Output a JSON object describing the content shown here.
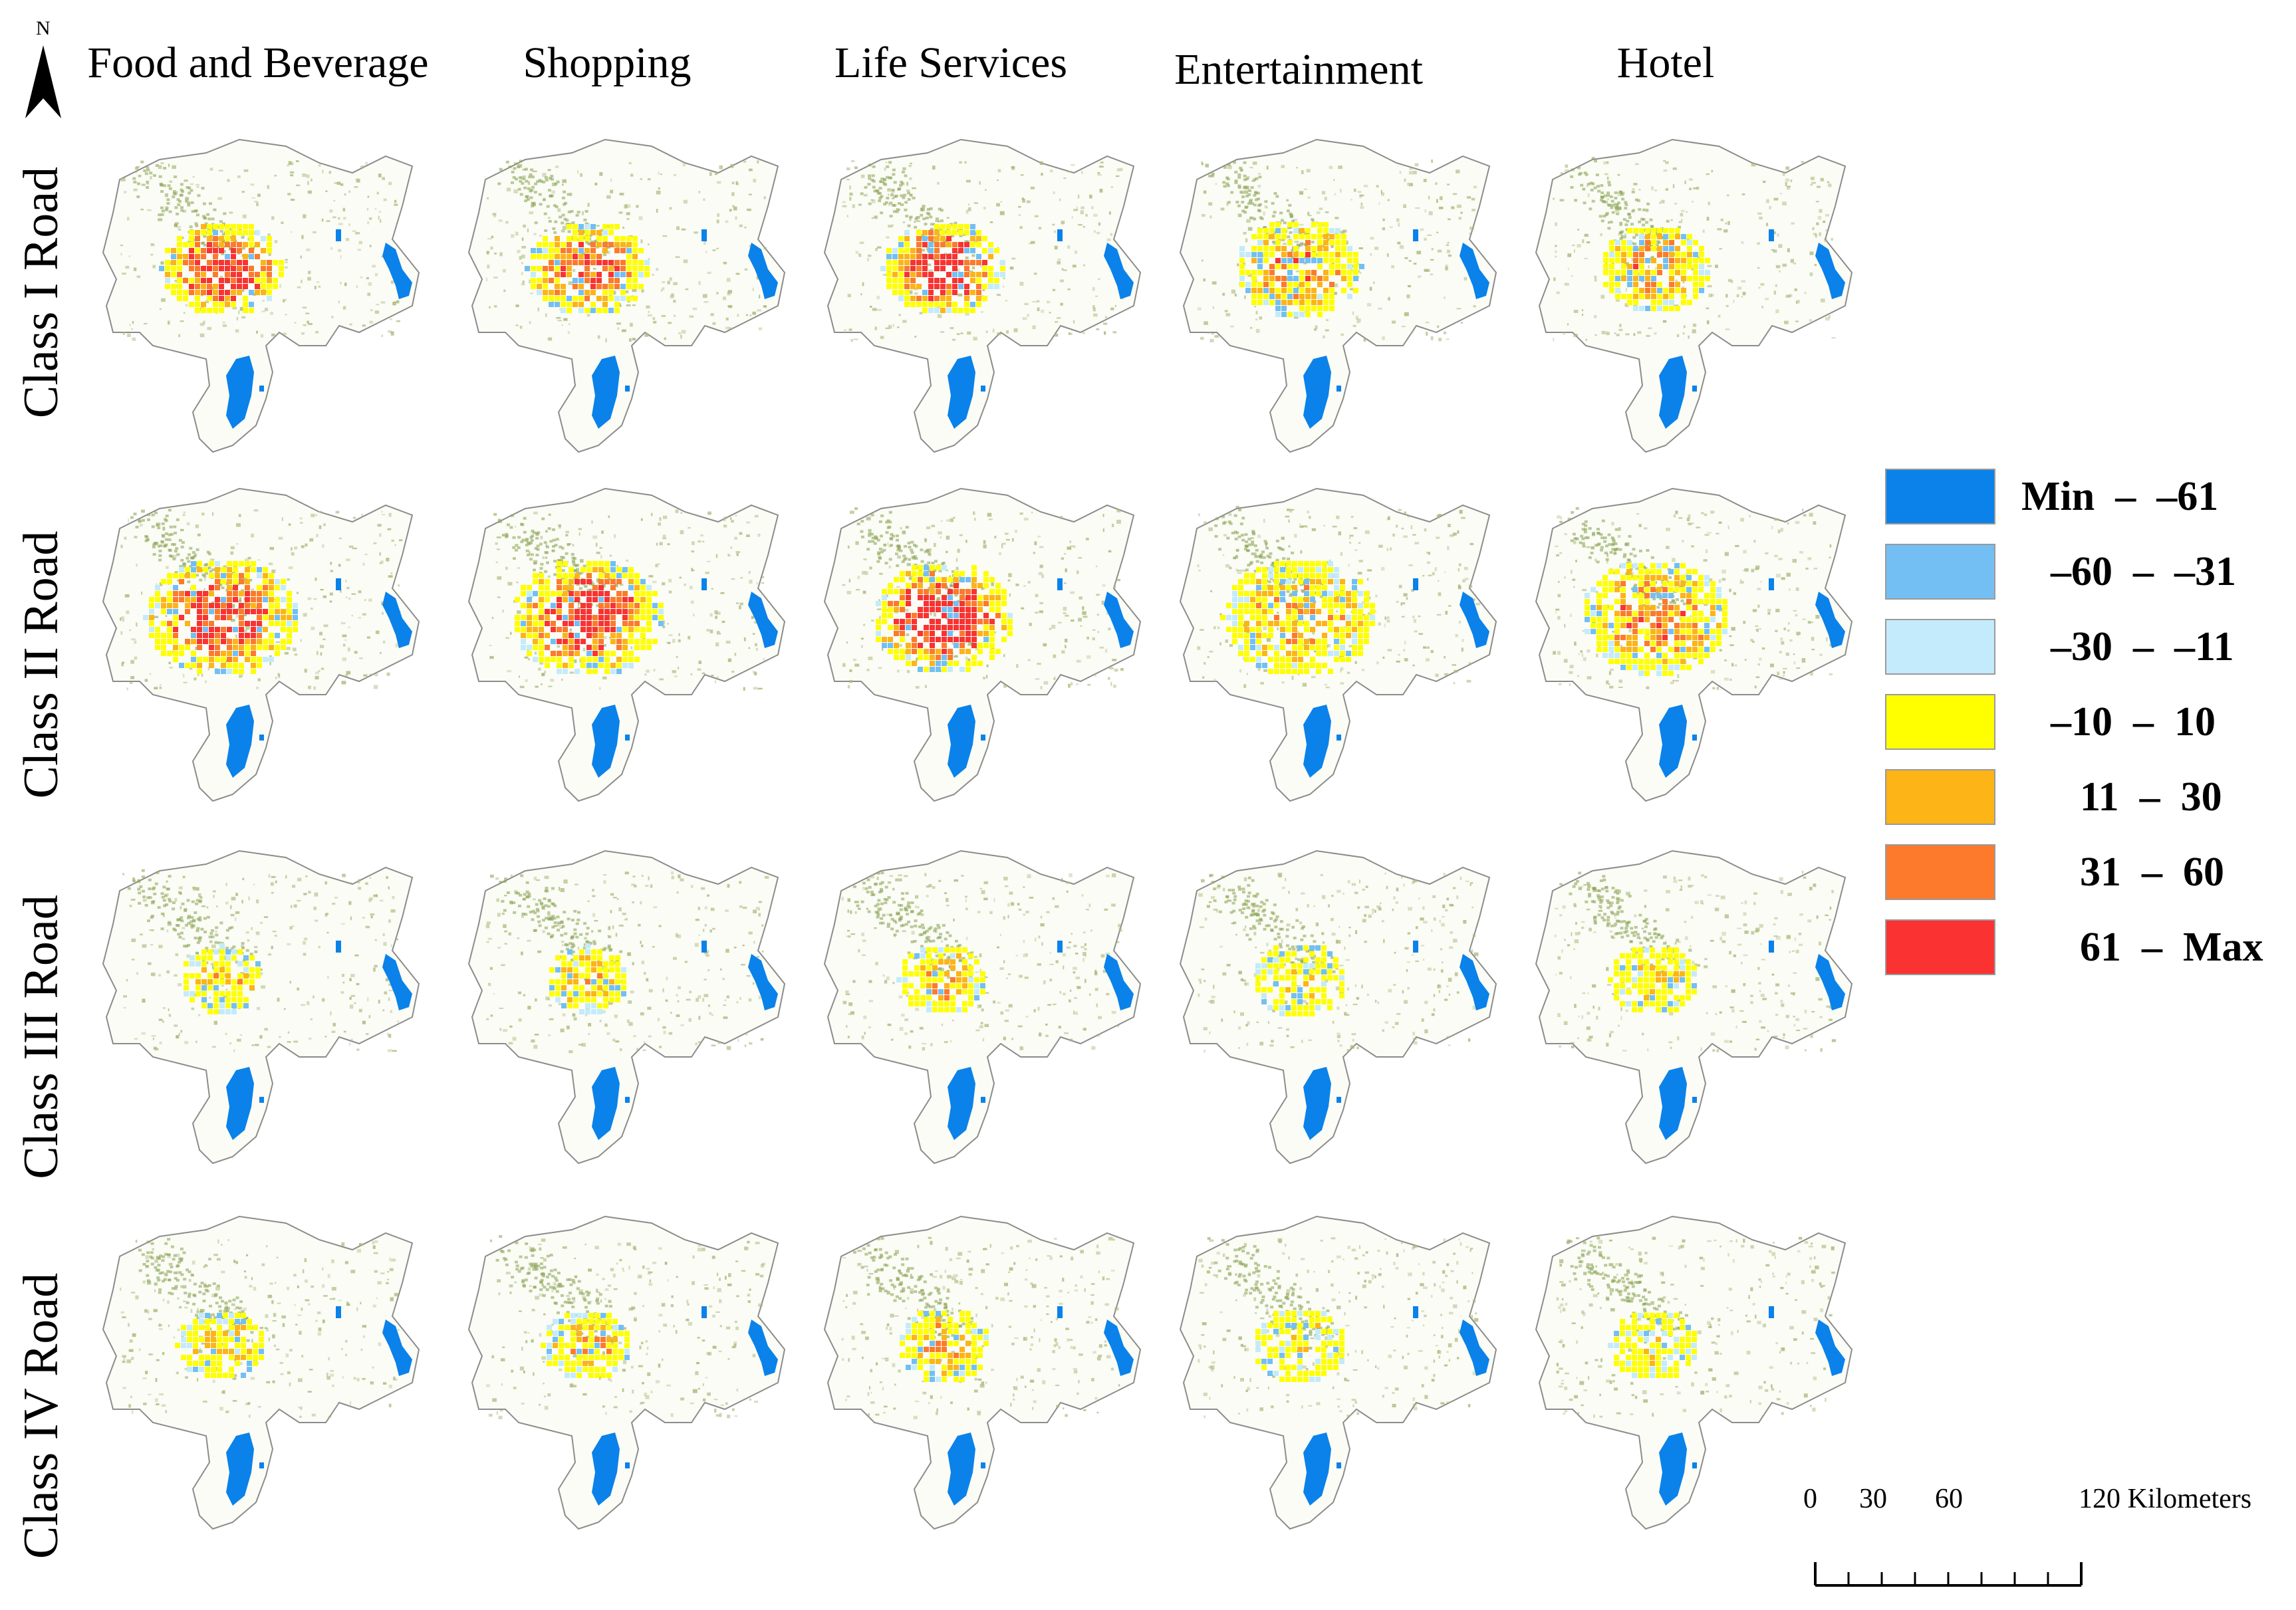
{
  "north_arrow": {
    "letter": "N"
  },
  "columns": [
    "Food and Beverage",
    "Shopping",
    "Life Services",
    "Entertainment",
    "Hotel"
  ],
  "rows": [
    "Class I Road",
    "Class II Road",
    "Class III Road",
    "Class IV Road"
  ],
  "legend": [
    {
      "label": "Min  –  –61",
      "color": "#0a82ea"
    },
    {
      "label": "–60  –  –31",
      "color": "#73bff4"
    },
    {
      "label": "–30  –  –11",
      "color": "#c4ebfb"
    },
    {
      "label": "–10  –  10",
      "color": "#ffff00"
    },
    {
      "label": "11  –  30",
      "color": "#fdb417"
    },
    {
      "label": "31  –  60",
      "color": "#fd7a2c"
    },
    {
      "label": "61  –  Max",
      "color": "#fa3232"
    }
  ],
  "scale_bar": {
    "labels": [
      "0",
      "30",
      "60",
      "120 Kilometers"
    ]
  },
  "colors": {
    "water": "#0a82ea",
    "vegetation": "#a9b97a",
    "boundary": "#8c8c8c"
  },
  "maps": {
    "intensity": [
      [
        0.8,
        0.7,
        0.9,
        0.5,
        0.5
      ],
      [
        0.8,
        0.8,
        0.95,
        0.4,
        0.55
      ],
      [
        0.35,
        0.35,
        0.4,
        0.2,
        0.25
      ],
      [
        0.3,
        0.35,
        0.4,
        0.2,
        0.2
      ]
    ],
    "spread": [
      [
        0.7,
        0.7,
        0.7,
        0.75,
        0.6
      ],
      [
        1.0,
        1.0,
        0.9,
        1.0,
        0.95
      ],
      [
        0.35,
        0.35,
        0.4,
        0.45,
        0.4
      ],
      [
        0.4,
        0.4,
        0.45,
        0.45,
        0.4
      ]
    ]
  }
}
